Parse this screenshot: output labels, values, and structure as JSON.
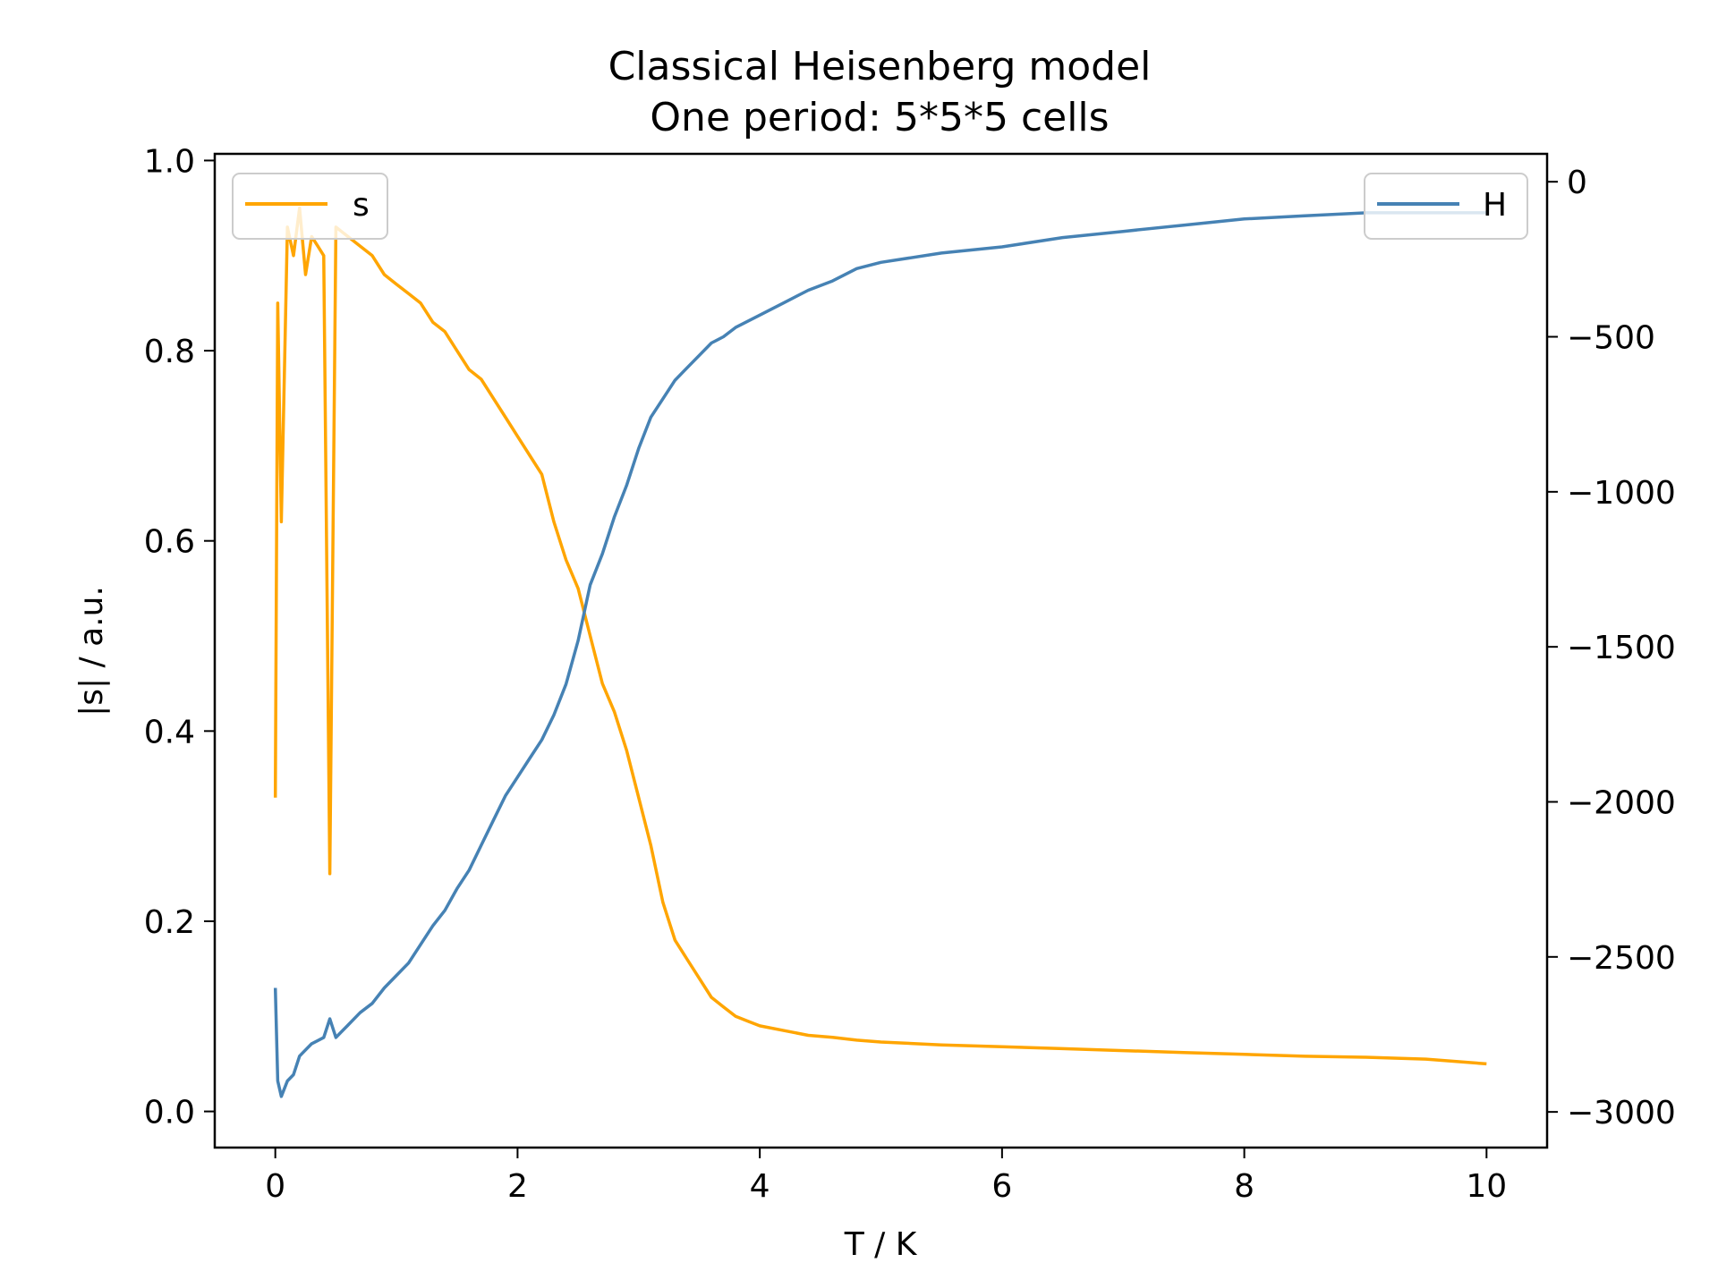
{
  "chart_data": {
    "type": "line",
    "title": "Classical Heisenberg model",
    "subtitle": "One period: 5*5*5 cells",
    "xlabel": "T / K",
    "ylabel_left": "|s| / a.u.",
    "ylabel_right": "",
    "xlim": [
      -0.5,
      10.5
    ],
    "ylim_left": [
      -0.038,
      1.007
    ],
    "ylim_right": [
      -3115,
      90
    ],
    "x_ticks": [
      "0",
      "2",
      "4",
      "6",
      "8",
      "10"
    ],
    "x_tick_values": [
      0,
      2,
      4,
      6,
      8,
      10
    ],
    "y_left_ticks": [
      "0.0",
      "0.2",
      "0.4",
      "0.6",
      "0.8",
      "1.0"
    ],
    "y_left_tick_values": [
      0,
      0.2,
      0.4,
      0.6,
      0.8,
      1.0
    ],
    "y_right_ticks": [
      "0",
      "−500",
      "−1000",
      "−1500",
      "−2000",
      "−2500",
      "−3000"
    ],
    "y_right_tick_values": [
      0,
      -500,
      -1000,
      -1500,
      -2000,
      -2500,
      -3000
    ],
    "grid": false,
    "series": [
      {
        "name": "s",
        "axis": "left",
        "color": "#ffa500",
        "legend_position": "top-left",
        "x": [
          0,
          0.02,
          0.05,
          0.1,
          0.15,
          0.2,
          0.25,
          0.3,
          0.35,
          0.4,
          0.45,
          0.5,
          0.6,
          0.7,
          0.8,
          0.9,
          1.0,
          1.1,
          1.2,
          1.3,
          1.4,
          1.5,
          1.6,
          1.7,
          1.8,
          1.9,
          2.0,
          2.1,
          2.2,
          2.3,
          2.4,
          2.5,
          2.6,
          2.7,
          2.8,
          2.9,
          3.0,
          3.1,
          3.2,
          3.3,
          3.4,
          3.5,
          3.6,
          3.7,
          3.8,
          3.9,
          4.0,
          4.2,
          4.4,
          4.6,
          4.8,
          5.0,
          5.5,
          6.0,
          6.5,
          7.0,
          7.5,
          8.0,
          8.5,
          9.0,
          9.5,
          10.0
        ],
        "values": [
          0.33,
          0.85,
          0.62,
          0.93,
          0.9,
          0.95,
          0.88,
          0.92,
          0.91,
          0.9,
          0.25,
          0.93,
          0.92,
          0.91,
          0.9,
          0.88,
          0.87,
          0.86,
          0.85,
          0.83,
          0.82,
          0.8,
          0.78,
          0.77,
          0.75,
          0.73,
          0.71,
          0.69,
          0.67,
          0.62,
          0.58,
          0.55,
          0.5,
          0.45,
          0.42,
          0.38,
          0.33,
          0.28,
          0.22,
          0.18,
          0.16,
          0.14,
          0.12,
          0.11,
          0.1,
          0.095,
          0.09,
          0.085,
          0.08,
          0.078,
          0.075,
          0.073,
          0.07,
          0.068,
          0.066,
          0.064,
          0.062,
          0.06,
          0.058,
          0.057,
          0.055,
          0.05
        ]
      },
      {
        "name": "H",
        "axis": "right",
        "color": "#4682b4",
        "legend_position": "top-right",
        "x": [
          0,
          0.02,
          0.05,
          0.1,
          0.15,
          0.2,
          0.25,
          0.3,
          0.35,
          0.4,
          0.45,
          0.5,
          0.6,
          0.7,
          0.8,
          0.9,
          1.0,
          1.1,
          1.2,
          1.3,
          1.4,
          1.5,
          1.6,
          1.7,
          1.8,
          1.9,
          2.0,
          2.1,
          2.2,
          2.3,
          2.4,
          2.5,
          2.6,
          2.7,
          2.8,
          2.9,
          3.0,
          3.1,
          3.2,
          3.3,
          3.4,
          3.5,
          3.6,
          3.7,
          3.8,
          3.9,
          4.0,
          4.2,
          4.4,
          4.6,
          4.8,
          5.0,
          5.5,
          6.0,
          6.5,
          7.0,
          7.5,
          8.0,
          8.5,
          9.0,
          9.5,
          10.0
        ],
        "values": [
          -2600,
          -2900,
          -2950,
          -2900,
          -2880,
          -2820,
          -2800,
          -2780,
          -2770,
          -2760,
          -2700,
          -2760,
          -2720,
          -2680,
          -2650,
          -2600,
          -2560,
          -2520,
          -2460,
          -2400,
          -2350,
          -2280,
          -2220,
          -2140,
          -2060,
          -1980,
          -1920,
          -1860,
          -1800,
          -1720,
          -1620,
          -1480,
          -1300,
          -1200,
          -1080,
          -980,
          -860,
          -760,
          -700,
          -640,
          -600,
          -560,
          -520,
          -500,
          -470,
          -450,
          -430,
          -390,
          -350,
          -320,
          -280,
          -260,
          -230,
          -210,
          -180,
          -160,
          -140,
          -120,
          -110,
          -100,
          -100,
          -100
        ]
      }
    ]
  },
  "legend": {
    "s_label": "s",
    "h_label": "H"
  }
}
